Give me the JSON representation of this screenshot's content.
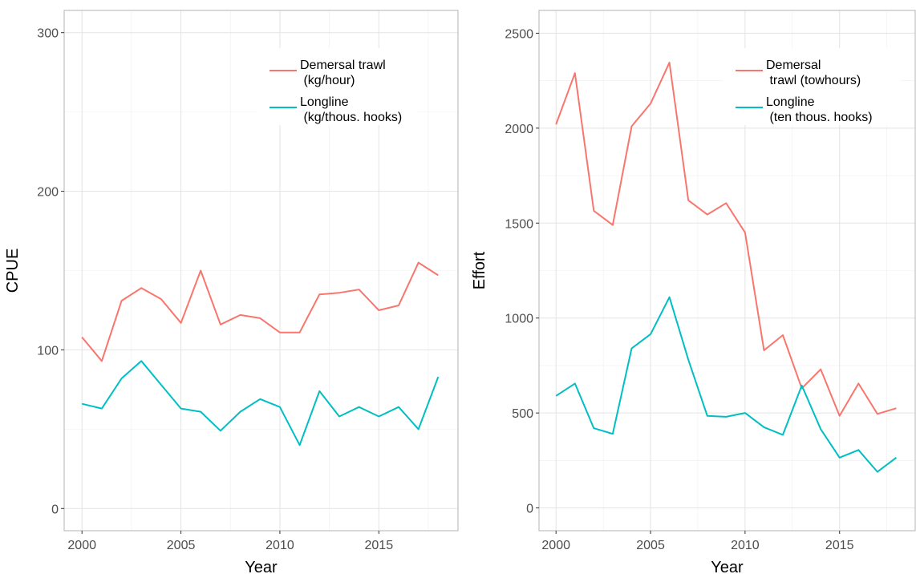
{
  "chart_data": [
    {
      "type": "line",
      "title": "",
      "xlabel": "Year",
      "ylabel": "CPUE",
      "xlim": [
        1999.1,
        2019.0
      ],
      "ylim": [
        -14,
        314
      ],
      "xticks": [
        2000,
        2005,
        2010,
        2015
      ],
      "yticks": [
        0,
        100,
        200,
        300
      ],
      "xminor": [
        2002.5,
        2007.5,
        2012.5,
        2017.5
      ],
      "yminor": [
        50,
        150,
        250
      ],
      "grid": true,
      "legend_position": "top-right",
      "x": [
        2000,
        2001,
        2002,
        2003,
        2004,
        2005,
        2006,
        2007,
        2008,
        2009,
        2010,
        2011,
        2012,
        2013,
        2014,
        2015,
        2016,
        2017,
        2018
      ],
      "series": [
        {
          "name": "Demersal trawl\n (kg/hour)",
          "color": "#F8766D",
          "values": [
            108,
            93,
            131,
            139,
            132,
            117,
            150,
            116,
            122,
            120,
            111,
            111,
            135,
            136,
            138,
            125,
            128,
            155,
            147
          ]
        },
        {
          "name": "Longline\n (kg/thous. hooks)",
          "color": "#00BFC4",
          "values": [
            66,
            63,
            82,
            93,
            78,
            63,
            61,
            49,
            61,
            69,
            64,
            40,
            74,
            58,
            64,
            58,
            64,
            50,
            83
          ]
        }
      ]
    },
    {
      "type": "line",
      "title": "",
      "xlabel": "Year",
      "ylabel": "Effort",
      "xlim": [
        1999.1,
        2019.0
      ],
      "ylim": [
        -120,
        2620
      ],
      "xticks": [
        2000,
        2005,
        2010,
        2015
      ],
      "yticks": [
        0,
        500,
        1000,
        1500,
        2000,
        2500
      ],
      "xminor": [
        2002.5,
        2007.5,
        2012.5,
        2017.5
      ],
      "yminor": [
        250,
        750,
        1250,
        1750,
        2250
      ],
      "grid": true,
      "legend_position": "top-right",
      "x": [
        2000,
        2001,
        2002,
        2003,
        2004,
        2005,
        2006,
        2007,
        2008,
        2009,
        2010,
        2011,
        2012,
        2013,
        2014,
        2015,
        2016,
        2017,
        2018
      ],
      "series": [
        {
          "name": "Demersal\n trawl (towhours)",
          "color": "#F8766D",
          "values": [
            2020,
            2290,
            1565,
            1490,
            2010,
            2130,
            2345,
            1620,
            1545,
            1605,
            1450,
            830,
            910,
            630,
            730,
            485,
            655,
            495,
            525
          ]
        },
        {
          "name": "Longline\n (ten thous. hooks)",
          "color": "#00BFC4",
          "values": [
            590,
            655,
            420,
            390,
            840,
            915,
            1110,
            780,
            485,
            480,
            500,
            425,
            385,
            645,
            415,
            265,
            305,
            190,
            265
          ]
        }
      ]
    }
  ]
}
